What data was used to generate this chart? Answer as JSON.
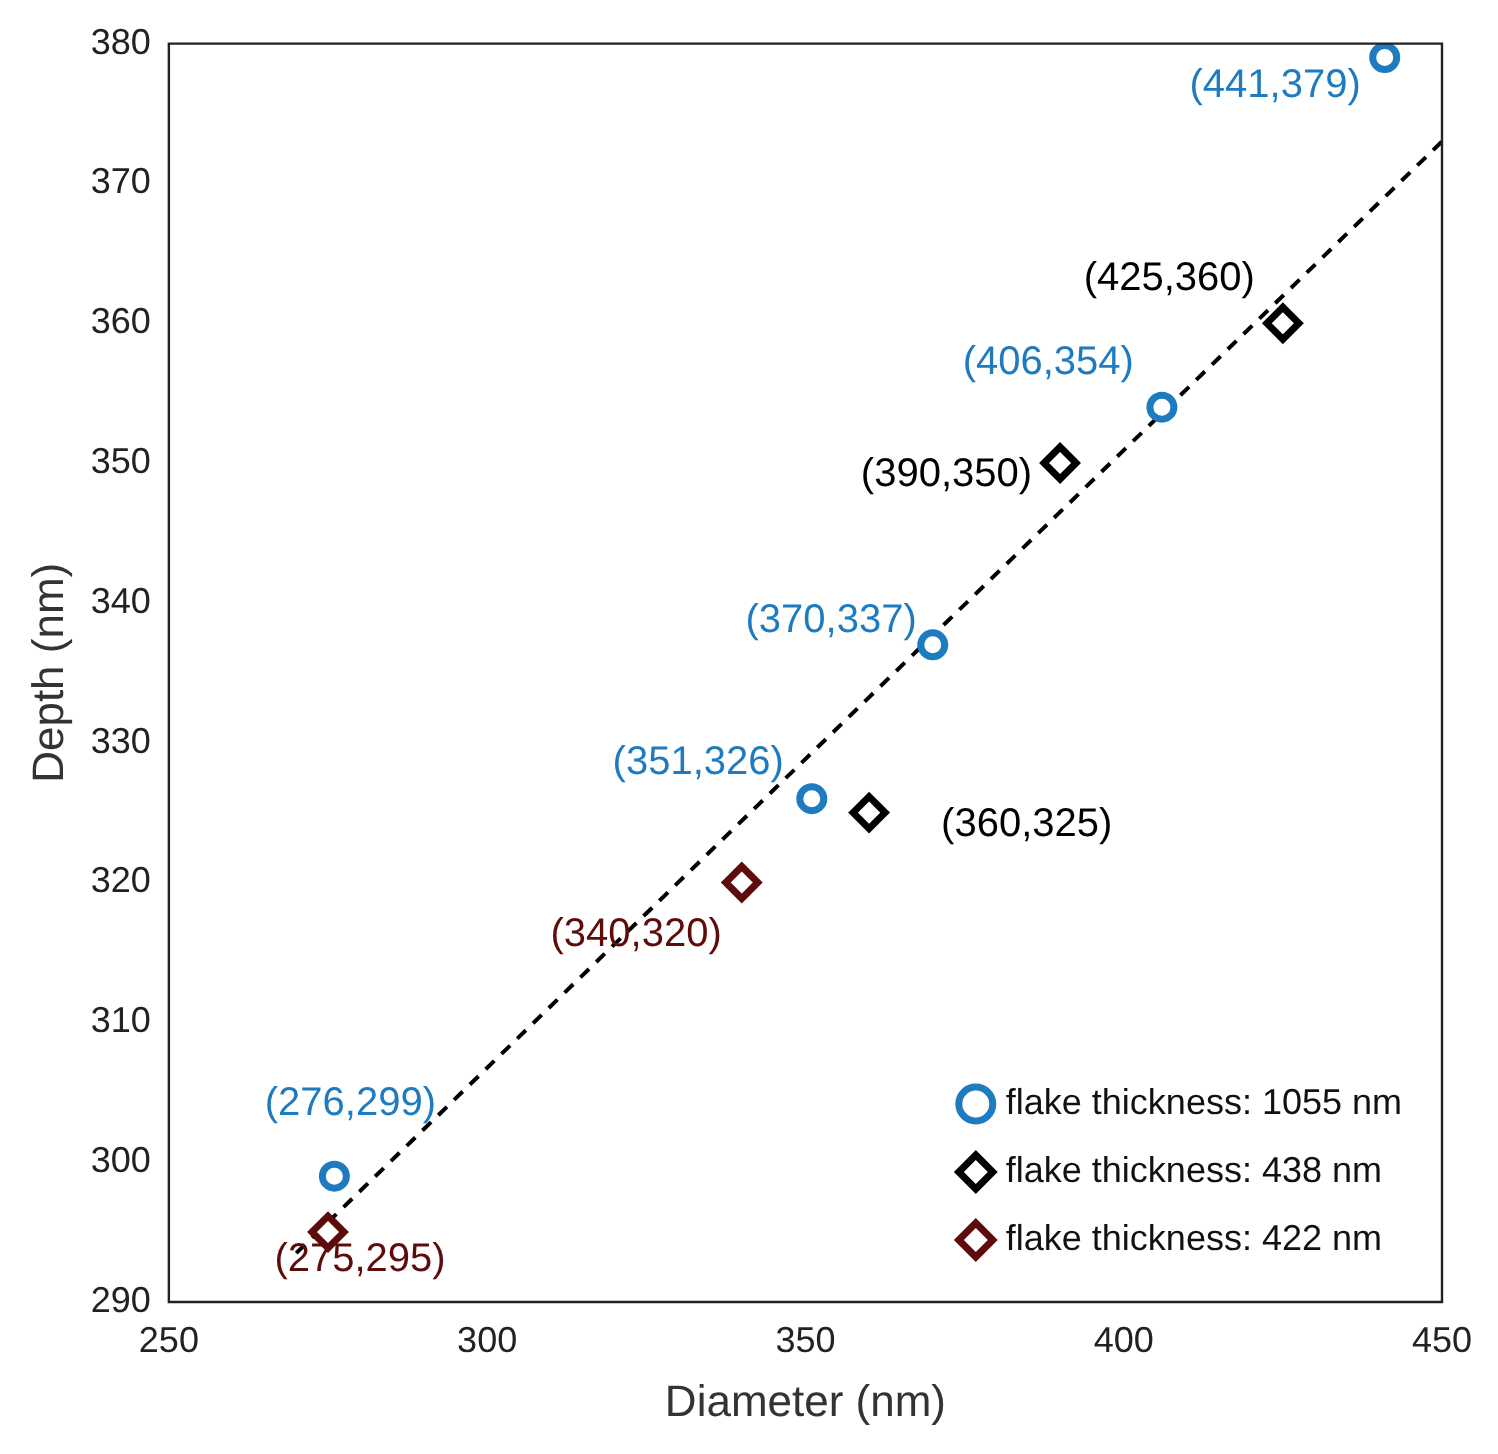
{
  "chart_data": {
    "type": "scatter",
    "xlabel": "Diameter (nm)",
    "ylabel": "Depth (nm)",
    "xlim": [
      250,
      450
    ],
    "xticks": [
      250,
      300,
      350,
      400,
      450
    ],
    "ylim": [
      290,
      380
    ],
    "yticks": [
      290,
      300,
      310,
      320,
      330,
      340,
      350,
      360,
      370,
      380
    ],
    "grid": false,
    "legend": "bottom right",
    "series": [
      {
        "name": "flake thickness: 1055 nm",
        "color": "#1f7bc0",
        "marker": "circle",
        "x": [
          276,
          351,
          370,
          406,
          441
        ],
        "values": [
          299,
          326,
          337,
          354,
          379
        ]
      },
      {
        "name": "flake thickness: 438 nm",
        "color": "#000000",
        "marker": "diamond",
        "x": [
          360,
          390,
          425
        ],
        "values": [
          325,
          350,
          360
        ]
      },
      {
        "name": "flake thickness: 422 nm",
        "color": "#5e0b0b",
        "marker": "diamond",
        "x": [
          275,
          340
        ],
        "values": [
          295,
          320
        ]
      },
      {
        "type": "line",
        "color": "#000000",
        "marker": "none",
        "line_style": "dashed",
        "x": [
          270,
          450
        ],
        "values": [
          293.5,
          373
        ]
      }
    ],
    "annotations": [
      {
        "text": "(276,299)",
        "x": 276,
        "y": 299
      },
      {
        "text": "(351,326)",
        "x": 351,
        "y": 326
      },
      {
        "text": "(370,337)",
        "x": 370,
        "y": 337
      },
      {
        "text": "(406,354)",
        "x": 406,
        "y": 354
      },
      {
        "text": "(441,379)",
        "x": 441,
        "y": 379
      },
      {
        "text": "(360,325)",
        "x": 360,
        "y": 325
      },
      {
        "text": "(390,350)",
        "x": 390,
        "y": 350
      },
      {
        "text": "(425,360)",
        "x": 425,
        "y": 360
      },
      {
        "text": "(275,295)",
        "x": 275,
        "y": 295
      },
      {
        "text": "(340,320)",
        "x": 340,
        "y": 320
      }
    ]
  }
}
